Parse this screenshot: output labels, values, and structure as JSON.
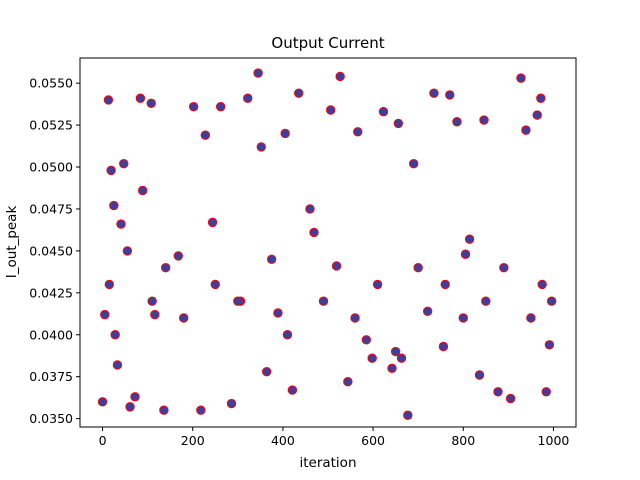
{
  "chart_data": {
    "type": "scatter",
    "title": "Output Current",
    "xlabel": "iteration",
    "ylabel": "I_out_peak",
    "xlim": [
      -50,
      1050
    ],
    "ylim": [
      0.0345,
      0.0565
    ],
    "xticks": [
      0,
      200,
      400,
      600,
      800,
      1000
    ],
    "xtick_labels": [
      "0",
      "200",
      "400",
      "600",
      "800",
      "1000"
    ],
    "yticks": [
      0.035,
      0.0375,
      0.04,
      0.0425,
      0.045,
      0.0475,
      0.05,
      0.0525,
      0.055
    ],
    "ytick_labels": [
      "0.0350",
      "0.0375",
      "0.0400",
      "0.0425",
      "0.0450",
      "0.0475",
      "0.0500",
      "0.0525",
      "0.0550"
    ],
    "grid": false,
    "marker": {
      "face_color": "#3a3fa0",
      "edge_color": "#ff0000"
    },
    "series": [
      {
        "name": "I_out_peak",
        "x": [
          0,
          5,
          13,
          19,
          25,
          33,
          41,
          47,
          61,
          72,
          84,
          89,
          108,
          116,
          136,
          168,
          202,
          218,
          228,
          244,
          262,
          286,
          306,
          322,
          345,
          352,
          364,
          389,
          405,
          421,
          435,
          469,
          506,
          519,
          527,
          544,
          566,
          585,
          598,
          623,
          642,
          656,
          663,
          677,
          690,
          721,
          735,
          756,
          770,
          786,
          805,
          814,
          836,
          846,
          877,
          905,
          928,
          939,
          964,
          972,
          984,
          991,
          996,
          15,
          28,
          55,
          110,
          140,
          180,
          250,
          300,
          375,
          410,
          460,
          490,
          560,
          610,
          650,
          700,
          760,
          800,
          850,
          890,
          950,
          975
        ],
        "y": [
          0.036,
          0.0412,
          0.054,
          0.0498,
          0.0477,
          0.0382,
          0.0466,
          0.0502,
          0.0357,
          0.0363,
          0.0541,
          0.0486,
          0.0538,
          0.0412,
          0.0355,
          0.0447,
          0.0536,
          0.0355,
          0.0519,
          0.0467,
          0.0536,
          0.0359,
          0.042,
          0.0541,
          0.0556,
          0.0512,
          0.0378,
          0.0413,
          0.052,
          0.0367,
          0.0544,
          0.0461,
          0.0534,
          0.0441,
          0.0554,
          0.0372,
          0.0521,
          0.0397,
          0.0386,
          0.0533,
          0.038,
          0.0526,
          0.0386,
          0.0352,
          0.0502,
          0.0414,
          0.0544,
          0.0393,
          0.0543,
          0.0527,
          0.0448,
          0.0457,
          0.0376,
          0.0528,
          0.0366,
          0.0362,
          0.0553,
          0.0522,
          0.0531,
          0.0541,
          0.0366,
          0.0394,
          0.042,
          0.043,
          0.04,
          0.045,
          0.042,
          0.044,
          0.041,
          0.043,
          0.042,
          0.0445,
          0.04,
          0.0475,
          0.042,
          0.041,
          0.043,
          0.039,
          0.044,
          0.043,
          0.041,
          0.042,
          0.044,
          0.041,
          0.043
        ]
      }
    ]
  }
}
